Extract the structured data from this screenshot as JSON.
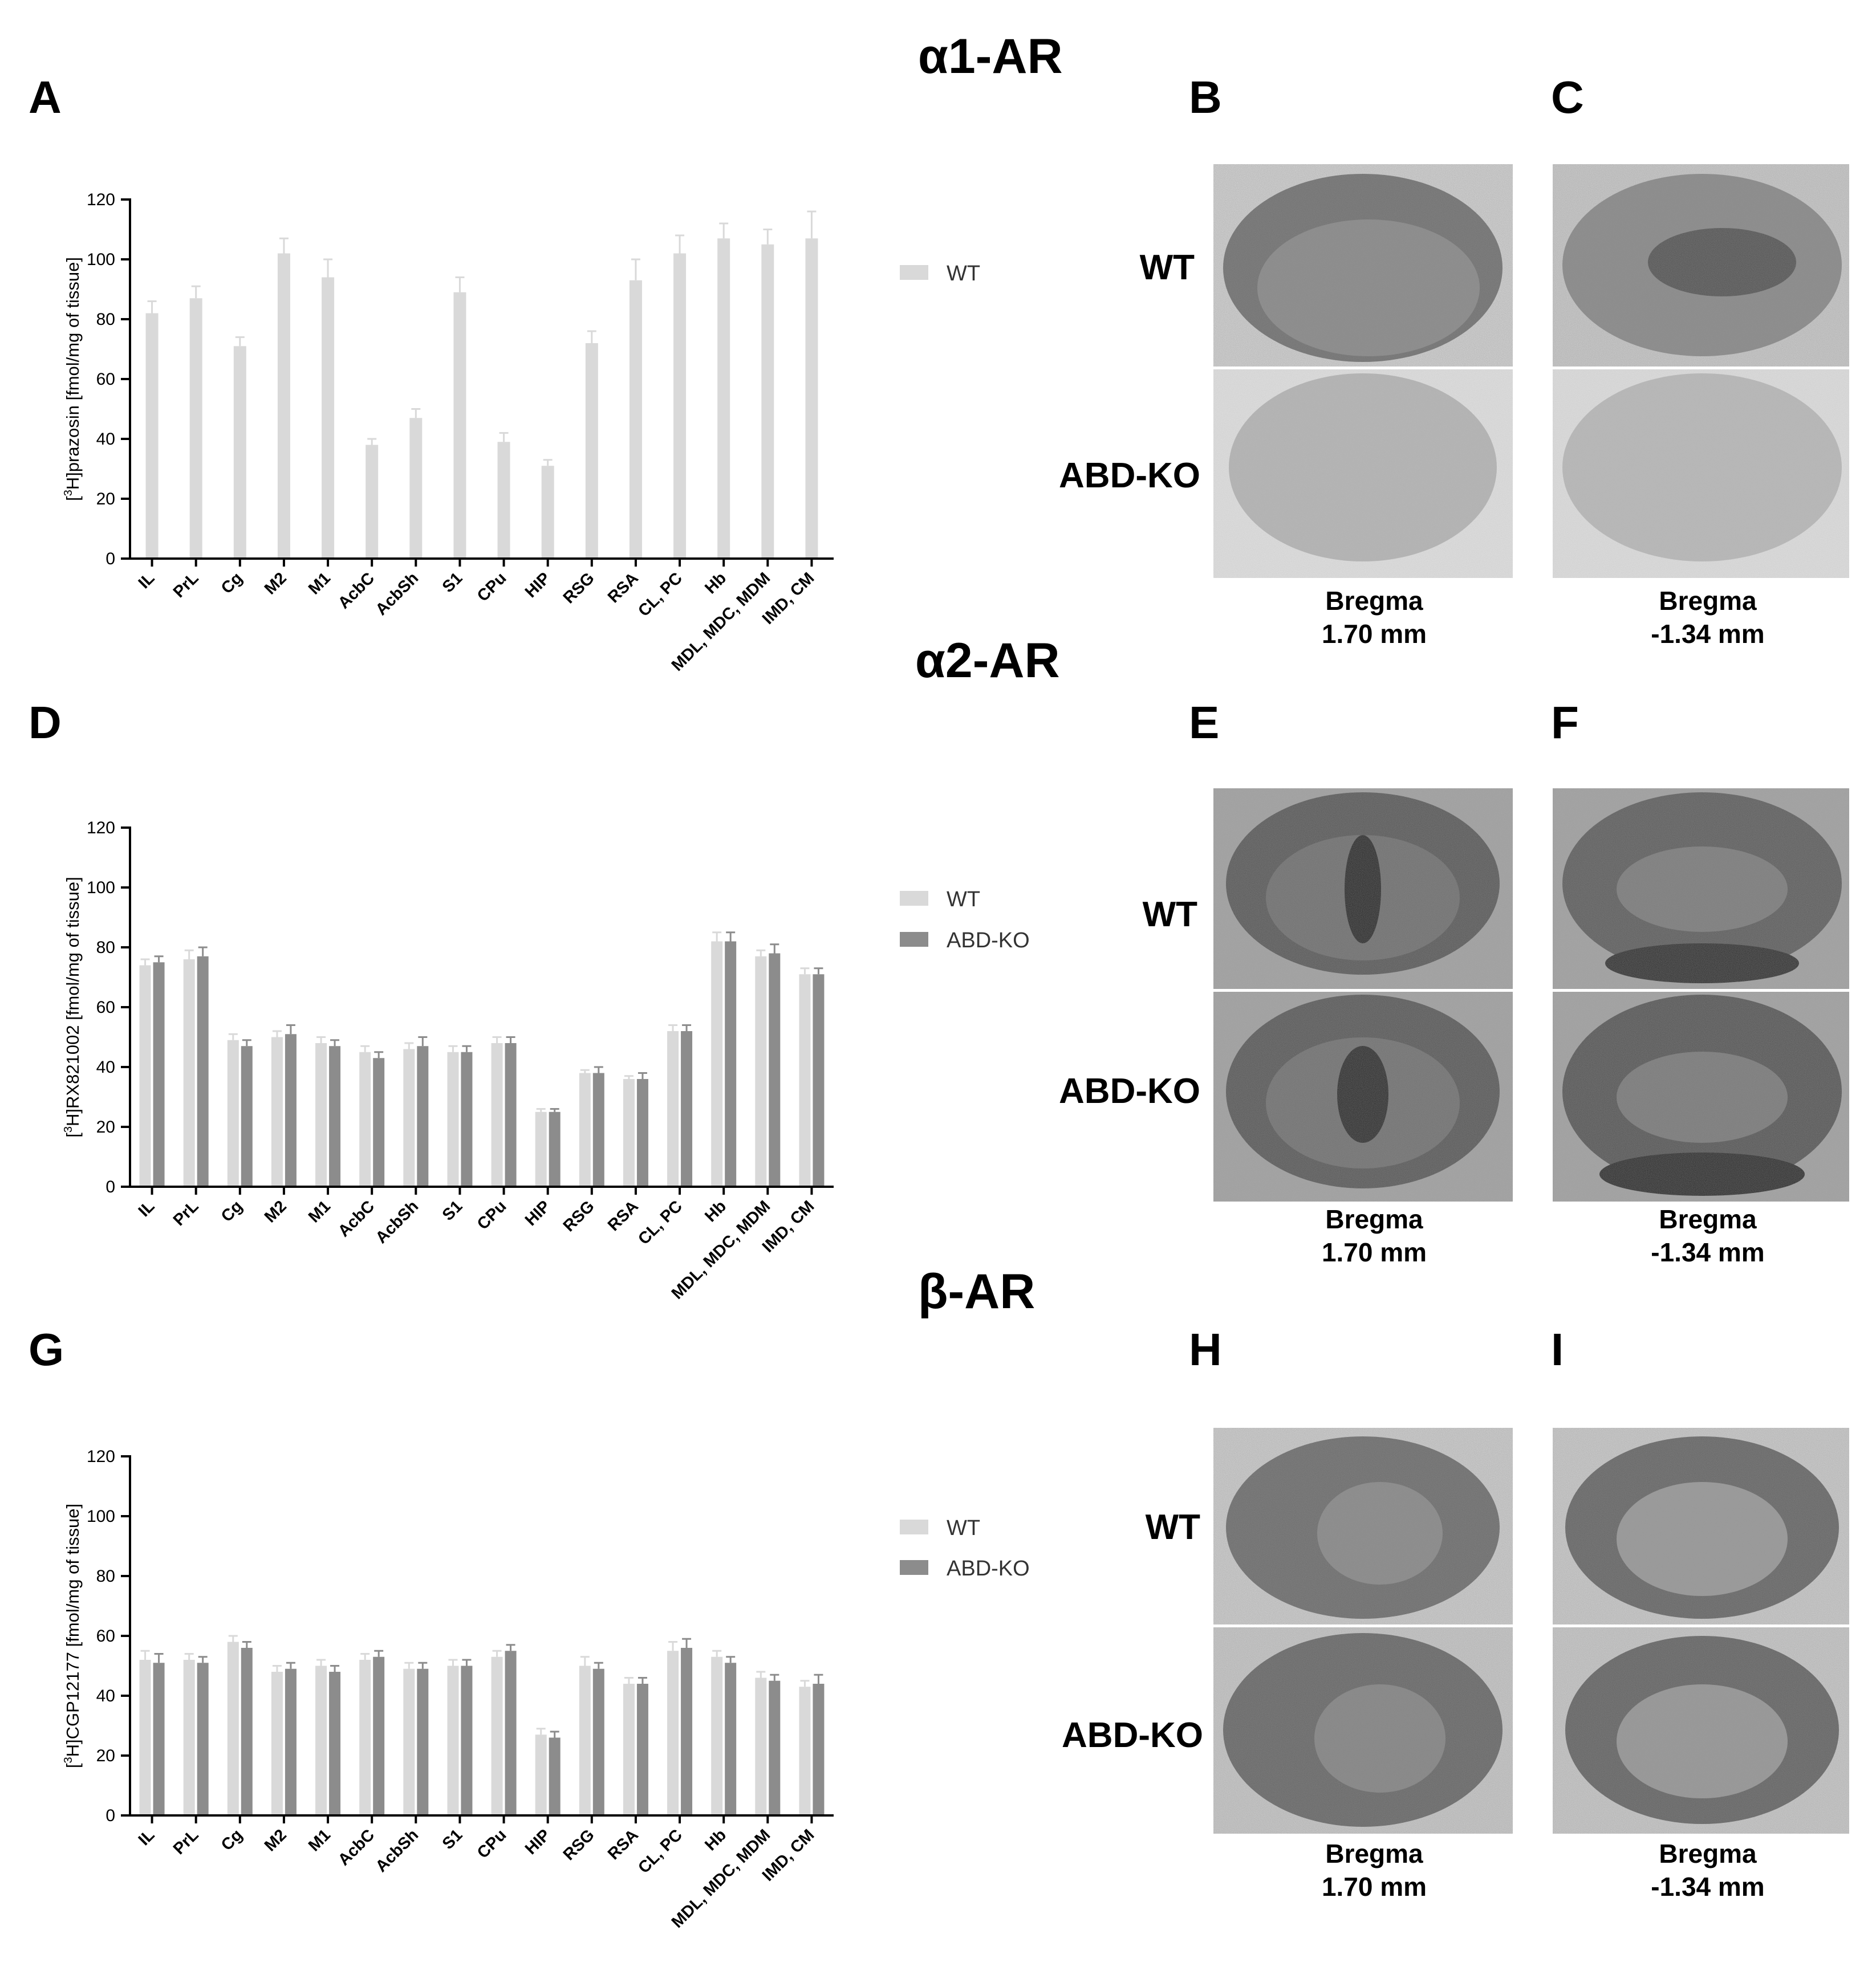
{
  "colors": {
    "wt": "#d9d9d9",
    "ko": "#8c8c8c",
    "axis": "#000000"
  },
  "sections": [
    {
      "title": "α1-AR",
      "letters": [
        "B",
        "C"
      ]
    },
    {
      "title": "α2-AR",
      "letters": [
        "E",
        "F"
      ]
    },
    {
      "title": "β-AR",
      "letters": [
        "H",
        "I"
      ]
    }
  ],
  "image_labels": {
    "wt": "WT",
    "ko": "ABD-KO"
  },
  "captions": {
    "left": [
      "Bregma",
      "1.70 mm"
    ],
    "right": [
      "Bregma",
      "-1.34 mm"
    ]
  },
  "chart_data": [
    {
      "letter": "A",
      "type": "bar",
      "ylabel_prefix": "[",
      "ylabel_sup": "3",
      "ylabel_rest": "H]prazosin [fmol/mg of tissue]",
      "ylim": [
        0,
        120
      ],
      "yticks": [
        0,
        20,
        40,
        60,
        80,
        100,
        120
      ],
      "categories": [
        "IL",
        "PrL",
        "Cg",
        "M2",
        "M1",
        "AcbC",
        "AcbSh",
        "S1",
        "CPu",
        "HIP",
        "RSG",
        "RSA",
        "CL, PC",
        "Hb",
        "MDL, MDC, MDM",
        "IMD, CM"
      ],
      "series": [
        {
          "name": "WT",
          "values": [
            82,
            87,
            71,
            102,
            94,
            38,
            47,
            89,
            39,
            31,
            72,
            93,
            102,
            107,
            105,
            107
          ],
          "errors": [
            4,
            4,
            3,
            5,
            6,
            2,
            3,
            5,
            3,
            2,
            4,
            7,
            6,
            5,
            5,
            9
          ]
        }
      ]
    },
    {
      "letter": "D",
      "type": "bar",
      "ylabel_prefix": "[",
      "ylabel_sup": "3",
      "ylabel_rest": "H]RX821002 [fmol/mg of tissue]",
      "ylim": [
        0,
        120
      ],
      "yticks": [
        0,
        20,
        40,
        60,
        80,
        100,
        120
      ],
      "categories": [
        "IL",
        "PrL",
        "Cg",
        "M2",
        "M1",
        "AcbC",
        "AcbSh",
        "S1",
        "CPu",
        "HIP",
        "RSG",
        "RSA",
        "CL, PC",
        "Hb",
        "MDL, MDC, MDM",
        "IMD, CM"
      ],
      "series": [
        {
          "name": "WT",
          "values": [
            74,
            76,
            49,
            50,
            48,
            45,
            46,
            45,
            48,
            25,
            38,
            36,
            52,
            82,
            77,
            71
          ],
          "errors": [
            2,
            3,
            2,
            2,
            2,
            2,
            2,
            2,
            2,
            1,
            1,
            1,
            2,
            3,
            2,
            2
          ]
        },
        {
          "name": "ABD-KO",
          "values": [
            75,
            77,
            47,
            51,
            47,
            43,
            47,
            45,
            48,
            25,
            38,
            36,
            52,
            82,
            78,
            71
          ],
          "errors": [
            2,
            3,
            2,
            3,
            2,
            2,
            3,
            2,
            2,
            1,
            2,
            2,
            2,
            3,
            3,
            2
          ]
        }
      ]
    },
    {
      "letter": "G",
      "type": "bar",
      "ylabel_prefix": "[",
      "ylabel_sup": "3",
      "ylabel_rest": "H]CGP12177 [fmol/mg of tissue]",
      "ylim": [
        0,
        120
      ],
      "yticks": [
        0,
        20,
        40,
        60,
        80,
        100,
        120
      ],
      "categories": [
        "IL",
        "PrL",
        "Cg",
        "M2",
        "M1",
        "AcbC",
        "AcbSh",
        "S1",
        "CPu",
        "HIP",
        "RSG",
        "RSA",
        "CL, PC",
        "Hb",
        "MDL, MDC, MDM",
        "IMD, CM"
      ],
      "series": [
        {
          "name": "WT",
          "values": [
            52,
            52,
            58,
            48,
            50,
            52,
            49,
            50,
            53,
            27,
            50,
            44,
            55,
            53,
            46,
            43
          ],
          "errors": [
            3,
            2,
            2,
            2,
            2,
            2,
            2,
            2,
            2,
            2,
            3,
            2,
            3,
            2,
            2,
            2
          ]
        },
        {
          "name": "ABD-KO",
          "values": [
            51,
            51,
            56,
            49,
            48,
            53,
            49,
            50,
            55,
            26,
            49,
            44,
            56,
            51,
            45,
            44
          ],
          "errors": [
            3,
            2,
            2,
            2,
            2,
            2,
            2,
            2,
            2,
            2,
            2,
            2,
            3,
            2,
            2,
            3
          ]
        }
      ]
    }
  ]
}
